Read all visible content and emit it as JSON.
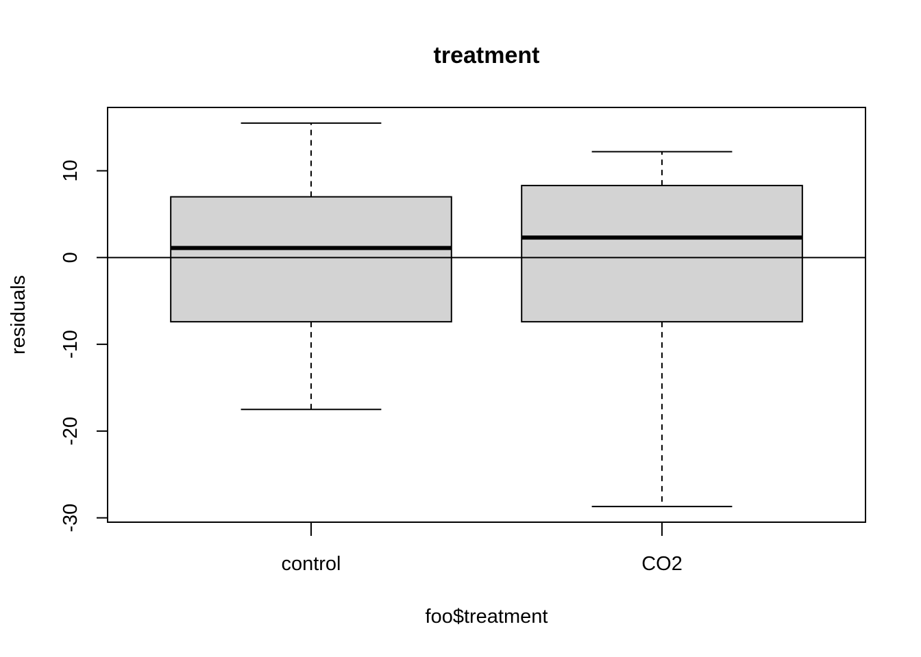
{
  "chart_data": {
    "type": "box",
    "title": "treatment",
    "xlabel": "foo$treatment",
    "ylabel": "residuals",
    "categories": [
      "control",
      "CO2"
    ],
    "boxes": [
      {
        "name": "control",
        "whisker_low": -17.5,
        "q1": -7.4,
        "median": 1.1,
        "q3": 7.0,
        "whisker_high": 15.5
      },
      {
        "name": "CO2",
        "whisker_low": -28.7,
        "q1": -7.4,
        "median": 2.3,
        "q3": 8.3,
        "whisker_high": 12.2
      }
    ],
    "ylim": [
      -30.5,
      17.3
    ],
    "yticks": [
      -30,
      -20,
      -10,
      0,
      10
    ],
    "ytick_labels": [
      "-30",
      "-20",
      "-10",
      "0",
      "10"
    ],
    "reference_line_y": 0,
    "box_fill": "#d3d3d3",
    "grid": false,
    "legend": "none"
  }
}
